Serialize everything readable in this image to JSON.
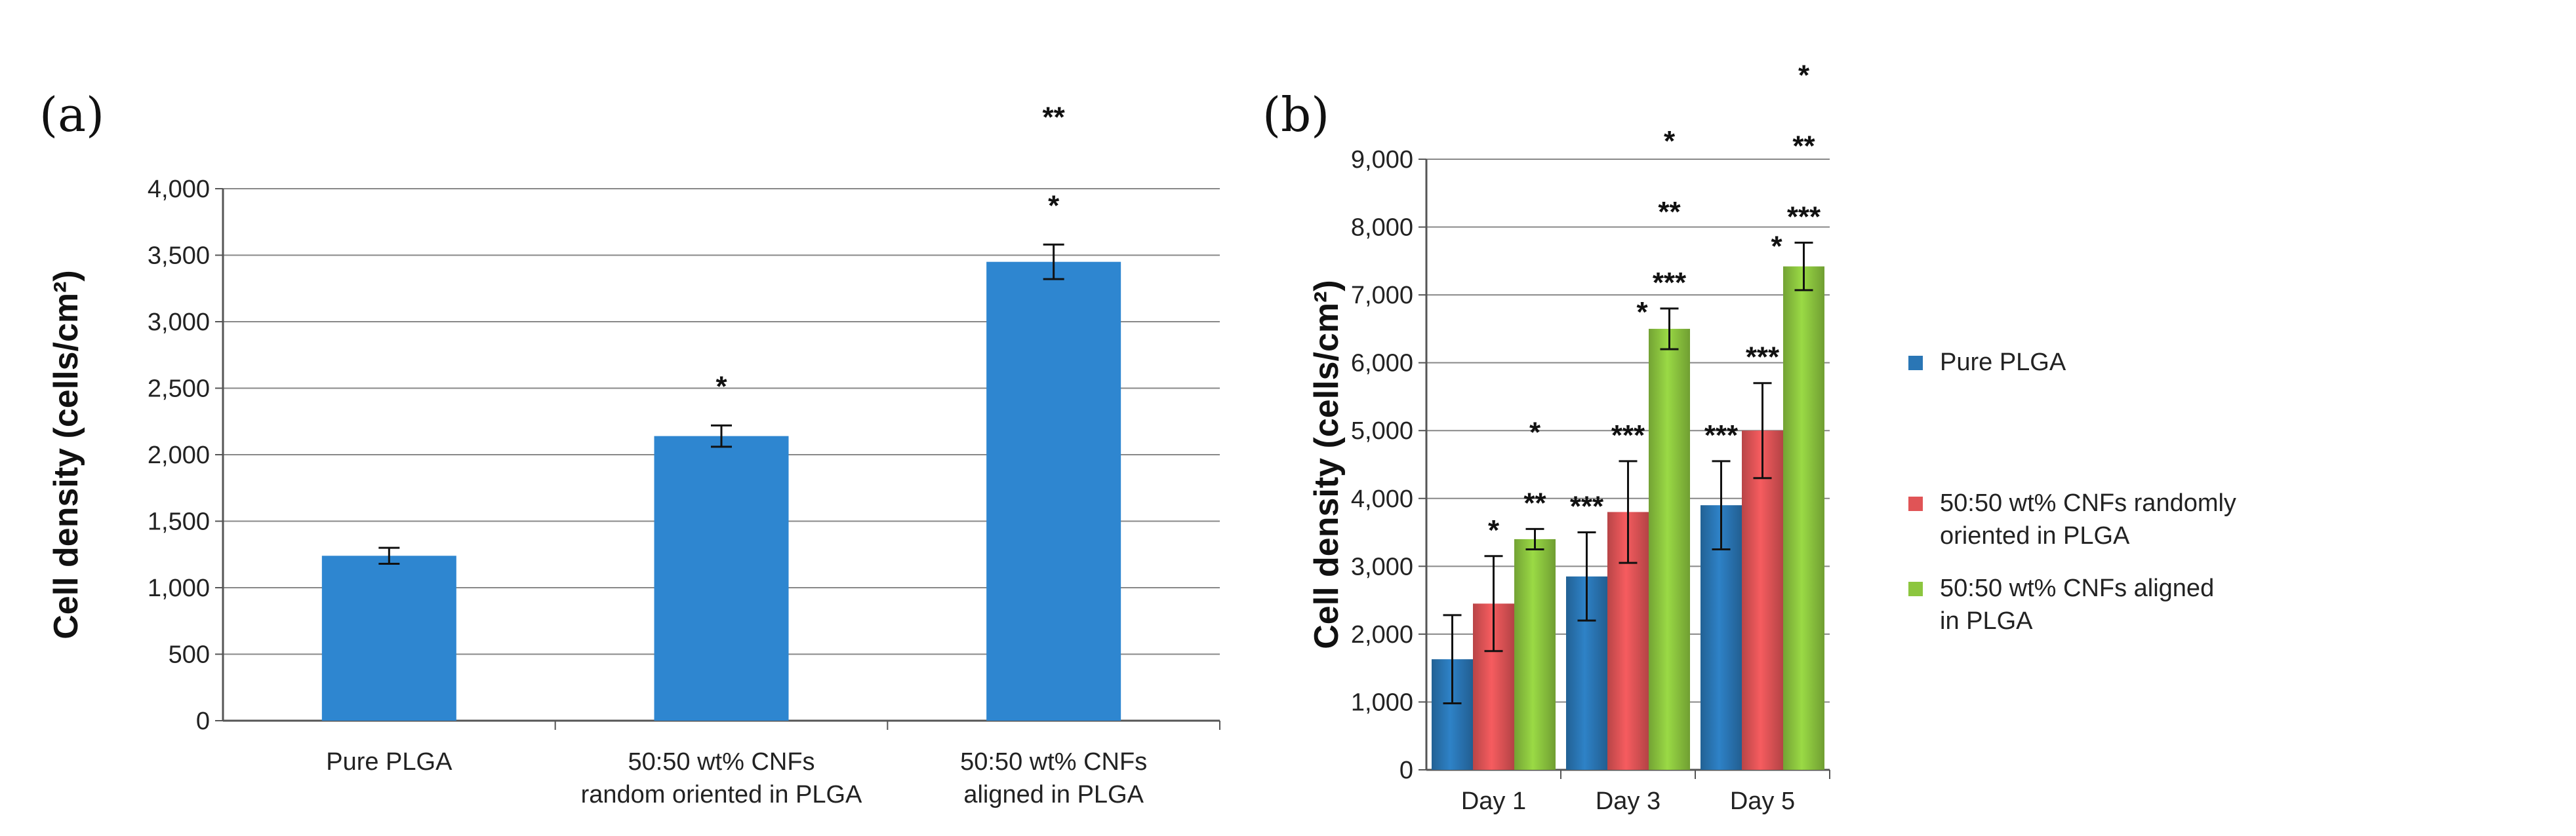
{
  "chart_data": [
    {
      "panel": "(a)",
      "type": "bar",
      "title": "",
      "xlabel": "",
      "ylabel": "Cell density (cells/cm²)",
      "ylim": [
        0,
        4000
      ],
      "yticks": [
        "0",
        "500",
        "1,000",
        "1,500",
        "2,000",
        "2,500",
        "3,000",
        "3,500",
        "4,000"
      ],
      "ytick_values": [
        0,
        500,
        1000,
        1500,
        2000,
        2500,
        3000,
        3500,
        4000
      ],
      "grid": true,
      "categories": [
        [
          "Pure PLGA"
        ],
        [
          "50:50 wt% CNFs",
          "random oriented in PLGA"
        ],
        [
          "50:50 wt% CNFs",
          "aligned in PLGA"
        ]
      ],
      "series": [
        {
          "values": [
            1240,
            2140,
            3450
          ],
          "errors": [
            60,
            80,
            130
          ],
          "color": "#2e86d0",
          "significance": [
            [],
            [
              "*"
            ],
            [
              "*",
              "**"
            ]
          ]
        }
      ]
    },
    {
      "panel": "(b)",
      "type": "bar",
      "title": "",
      "xlabel": "",
      "ylabel": "Cell density (cells/cm²)",
      "ylim": [
        0,
        9000
      ],
      "yticks": [
        "0",
        "1,000",
        "2,000",
        "3,000",
        "4,000",
        "5,000",
        "6,000",
        "7,000",
        "8,000",
        "9,000"
      ],
      "ytick_values": [
        0,
        1000,
        2000,
        3000,
        4000,
        5000,
        6000,
        7000,
        8000,
        9000
      ],
      "grid": true,
      "categories": [
        [
          "Day 1"
        ],
        [
          "Day 3"
        ],
        [
          "Day 5"
        ]
      ],
      "legend": "right",
      "series": [
        {
          "name": [
            "Pure PLGA"
          ],
          "values": [
            1630,
            2850,
            3900
          ],
          "errors": [
            650,
            650,
            650
          ],
          "color": "#2a76b5",
          "significance": [
            [],
            [
              "***"
            ],
            [
              "***"
            ]
          ]
        },
        {
          "name": [
            "50:50 wt% CNFs randomly",
            "oriented in PLGA"
          ],
          "values": [
            2450,
            3800,
            5000
          ],
          "errors": [
            700,
            750,
            700
          ],
          "color": "#e05456",
          "significance": [
            [
              "*"
            ],
            [
              "***"
            ],
            [
              "***"
            ]
          ]
        },
        {
          "name": [
            "50:50 wt% CNFs aligned",
            "in PLGA"
          ],
          "values": [
            3400,
            6500,
            7420
          ],
          "errors": [
            150,
            300,
            350
          ],
          "color": "#8cc63f",
          "significance": [
            [
              "**",
              "*"
            ],
            [
              "***",
              "**",
              "*"
            ],
            [
              "***",
              "**",
              "*"
            ]
          ],
          "side_significance": [
            "",
            "*",
            "*"
          ]
        }
      ]
    }
  ]
}
